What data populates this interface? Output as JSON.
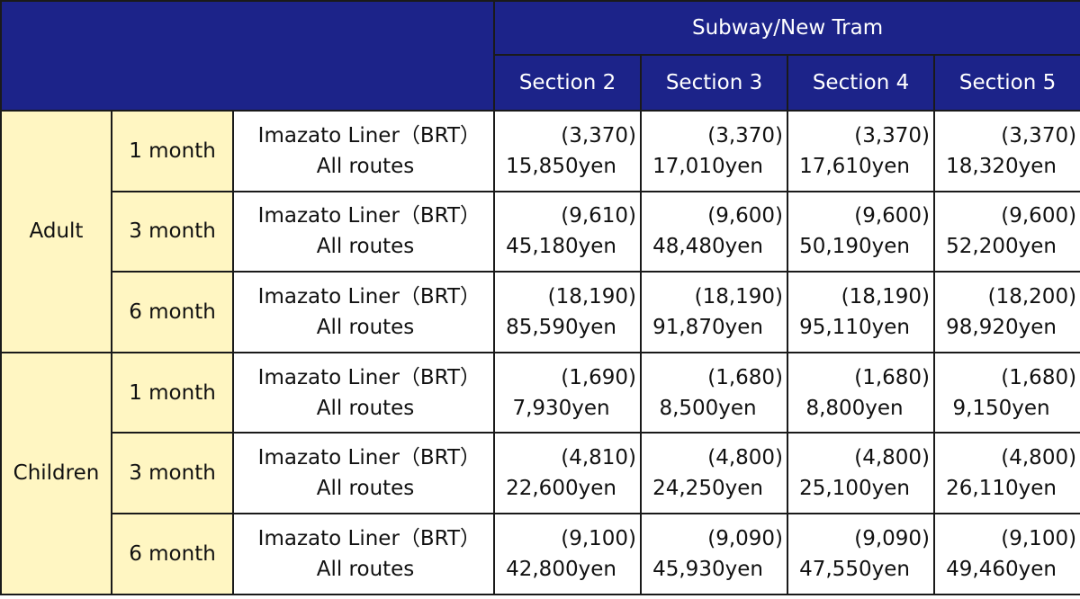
{
  "header": {
    "group_title": "Subway/New Tram",
    "sections": [
      "Section 2",
      "Section 3",
      "Section 4",
      "Section 5"
    ]
  },
  "rows": [
    {
      "category": "Adult",
      "duration": "1 month",
      "route_line1": "Imazato Liner（BRT）",
      "route_line2": "All routes",
      "fares": [
        {
          "discount": "(3,370)",
          "price": "15,850yen"
        },
        {
          "discount": "(3,370)",
          "price": "17,010yen"
        },
        {
          "discount": "(3,370)",
          "price": "17,610yen"
        },
        {
          "discount": "(3,370)",
          "price": "18,320yen"
        }
      ]
    },
    {
      "category": "Adult",
      "duration": "3 month",
      "route_line1": "Imazato Liner（BRT）",
      "route_line2": "All routes",
      "fares": [
        {
          "discount": "(9,610)",
          "price": "45,180yen"
        },
        {
          "discount": "(9,600)",
          "price": "48,480yen"
        },
        {
          "discount": "(9,600)",
          "price": "50,190yen"
        },
        {
          "discount": "(9,600)",
          "price": "52,200yen"
        }
      ]
    },
    {
      "category": "Adult",
      "duration": "6 month",
      "route_line1": "Imazato Liner（BRT）",
      "route_line2": "All routes",
      "fares": [
        {
          "discount": "(18,190)",
          "price": "85,590yen"
        },
        {
          "discount": "(18,190)",
          "price": "91,870yen"
        },
        {
          "discount": "(18,190)",
          "price": "95,110yen"
        },
        {
          "discount": "(18,200)",
          "price": "98,920yen"
        }
      ]
    },
    {
      "category": "Children",
      "duration": "1 month",
      "route_line1": "Imazato Liner（BRT）",
      "route_line2": "All routes",
      "fares": [
        {
          "discount": "(1,690)",
          "price": "7,930yen"
        },
        {
          "discount": "(1,680)",
          "price": "8,500yen"
        },
        {
          "discount": "(1,680)",
          "price": "8,800yen"
        },
        {
          "discount": "(1,680)",
          "price": "9,150yen"
        }
      ]
    },
    {
      "category": "Children",
      "duration": "3 month",
      "route_line1": "Imazato Liner（BRT）",
      "route_line2": "All routes",
      "fares": [
        {
          "discount": "(4,810)",
          "price": "22,600yen"
        },
        {
          "discount": "(4,800)",
          "price": "24,250yen"
        },
        {
          "discount": "(4,800)",
          "price": "25,100yen"
        },
        {
          "discount": "(4,800)",
          "price": "26,110yen"
        }
      ]
    },
    {
      "category": "Children",
      "duration": "6 month",
      "route_line1": "Imazato Liner（BRT）",
      "route_line2": "All routes",
      "fares": [
        {
          "discount": "(9,100)",
          "price": "42,800yen"
        },
        {
          "discount": "(9,090)",
          "price": "45,930yen"
        },
        {
          "discount": "(9,090)",
          "price": "47,550yen"
        },
        {
          "discount": "(9,100)",
          "price": "49,460yen"
        }
      ]
    }
  ],
  "colors": {
    "header_bg": "#1c2389",
    "label_bg": "#fff6c2",
    "border": "#1a1a1a"
  }
}
